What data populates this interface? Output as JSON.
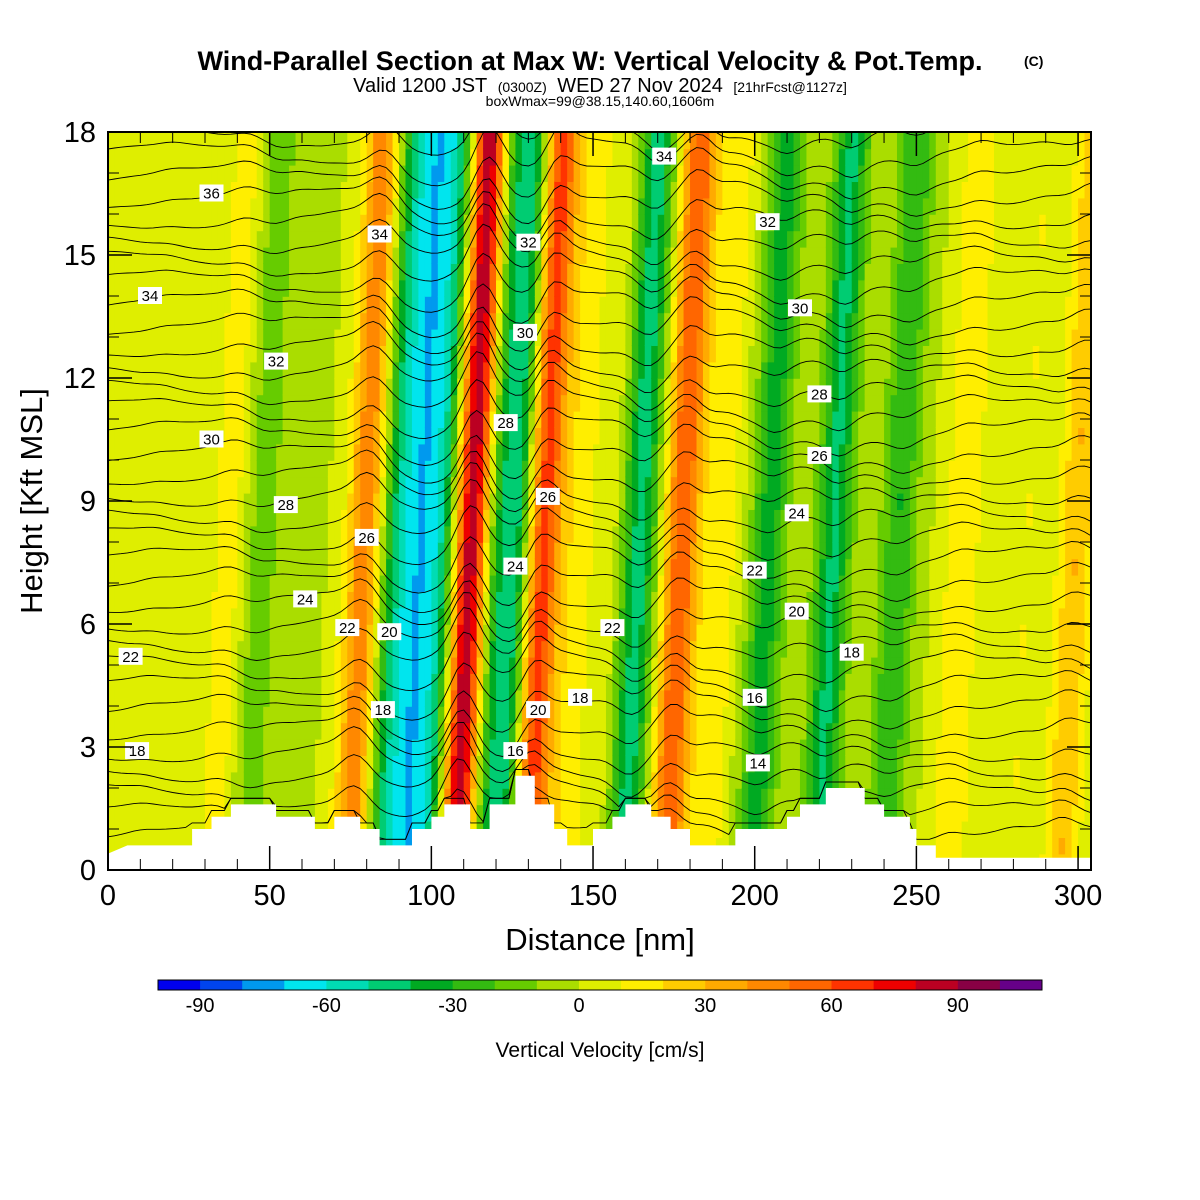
{
  "chart_data": {
    "type": "heatmap",
    "title": "Wind-Parallel Section at Max W: Vertical Velocity & Pot.Temp.",
    "title_mark": "(C)",
    "subtitle_prefix": "Valid 1200 JST",
    "subtitle_utc": "(0300Z)",
    "subtitle_date": "WED 27 Nov 2024",
    "subtitle_fcst": "[21hrFcst@1127z]",
    "subtitle_box": "boxWmax=99@38.15,140.60,1606m",
    "xlabel": "Distance [nm]",
    "ylabel": "Height [Kft MSL]",
    "xlim": [
      0,
      304
    ],
    "ylim": [
      0,
      18
    ],
    "x_ticks": [
      "0",
      "50",
      "100",
      "150",
      "200",
      "250",
      "300"
    ],
    "y_ticks": [
      "0",
      "3",
      "6",
      "9",
      "12",
      "15",
      "18"
    ],
    "colorbar": {
      "label": "Vertical Velocity [cm/s]",
      "range": [
        -100,
        110
      ],
      "step": 10,
      "tick_labels": [
        "-90",
        "-60",
        "-30",
        "0",
        "30",
        "60",
        "90"
      ],
      "colors": [
        "#0000ee",
        "#0044ee",
        "#0099ee",
        "#00e5ee",
        "#00dcb4",
        "#00cc72",
        "#00aa22",
        "#33bb11",
        "#66cc00",
        "#aadd00",
        "#dfee00",
        "#ffee00",
        "#ffcc00",
        "#ffaa00",
        "#ff8800",
        "#ff6600",
        "#ff3300",
        "#ee0000",
        "#bb0022",
        "#880044",
        "#660088"
      ]
    },
    "wind_bands": [
      {
        "x": 0,
        "amp": 2
      },
      {
        "x": 15,
        "amp": 8
      },
      {
        "x": 38,
        "amp": 16
      },
      {
        "x": 48,
        "amp": -16
      },
      {
        "x": 60,
        "amp": -6
      },
      {
        "x": 80,
        "amp": 48
      },
      {
        "x": 90,
        "amp": -38
      },
      {
        "x": 97,
        "amp": -55
      },
      {
        "x": 104,
        "amp": -42
      },
      {
        "x": 113,
        "amp": 95
      },
      {
        "x": 120,
        "amp": -28
      },
      {
        "x": 127,
        "amp": -45
      },
      {
        "x": 135,
        "amp": 68
      },
      {
        "x": 145,
        "amp": 15
      },
      {
        "x": 155,
        "amp": 8
      },
      {
        "x": 165,
        "amp": -45
      },
      {
        "x": 178,
        "amp": 60
      },
      {
        "x": 190,
        "amp": 18
      },
      {
        "x": 205,
        "amp": -35
      },
      {
        "x": 225,
        "amp": -42
      },
      {
        "x": 245,
        "amp": -30
      },
      {
        "x": 265,
        "amp": 20
      },
      {
        "x": 285,
        "amp": 10
      },
      {
        "x": 300,
        "amp": 30
      }
    ],
    "terrain": [
      [
        0,
        0.4
      ],
      [
        6,
        0.6
      ],
      [
        26,
        0.6
      ],
      [
        26,
        1.0
      ],
      [
        32,
        1.0
      ],
      [
        32,
        1.3
      ],
      [
        38,
        1.3
      ],
      [
        38,
        1.6
      ],
      [
        52,
        1.6
      ],
      [
        52,
        1.3
      ],
      [
        64,
        1.3
      ],
      [
        64,
        1.0
      ],
      [
        70,
        1.0
      ],
      [
        70,
        1.3
      ],
      [
        78,
        1.3
      ],
      [
        78,
        1.0
      ],
      [
        84,
        1.0
      ],
      [
        84,
        0.6
      ],
      [
        94,
        0.6
      ],
      [
        94,
        1.0
      ],
      [
        100,
        1.0
      ],
      [
        100,
        1.3
      ],
      [
        104,
        1.3
      ],
      [
        104,
        1.6
      ],
      [
        112,
        1.6
      ],
      [
        112,
        1.0
      ],
      [
        118,
        1.0
      ],
      [
        118,
        1.6
      ],
      [
        126,
        1.6
      ],
      [
        126,
        2.3
      ],
      [
        132,
        2.3
      ],
      [
        132,
        1.6
      ],
      [
        138,
        1.6
      ],
      [
        138,
        1.0
      ],
      [
        142,
        1.0
      ],
      [
        142,
        0.6
      ],
      [
        150,
        0.6
      ],
      [
        150,
        1.0
      ],
      [
        156,
        1.0
      ],
      [
        156,
        1.3
      ],
      [
        160,
        1.3
      ],
      [
        160,
        1.6
      ],
      [
        168,
        1.6
      ],
      [
        168,
        1.3
      ],
      [
        174,
        1.3
      ],
      [
        174,
        1.0
      ],
      [
        180,
        1.0
      ],
      [
        180,
        0.6
      ],
      [
        194,
        0.6
      ],
      [
        194,
        1.0
      ],
      [
        210,
        1.0
      ],
      [
        210,
        1.3
      ],
      [
        214,
        1.3
      ],
      [
        214,
        1.6
      ],
      [
        222,
        1.6
      ],
      [
        222,
        2.0
      ],
      [
        234,
        2.0
      ],
      [
        234,
        1.6
      ],
      [
        240,
        1.6
      ],
      [
        240,
        1.3
      ],
      [
        248,
        1.3
      ],
      [
        248,
        1.0
      ],
      [
        250,
        1.0
      ],
      [
        250,
        0.6
      ],
      [
        256,
        0.6
      ],
      [
        256,
        0.3
      ],
      [
        304,
        0.3
      ],
      [
        304,
        0
      ]
    ],
    "theta_contour_labels": [
      {
        "text": "36",
        "x": 32,
        "y": 16.5
      },
      {
        "text": "34",
        "x": 84,
        "y": 15.5
      },
      {
        "text": "34",
        "x": 13,
        "y": 14.0
      },
      {
        "text": "34",
        "x": 172,
        "y": 17.4
      },
      {
        "text": "32",
        "x": 130,
        "y": 15.3
      },
      {
        "text": "32",
        "x": 204,
        "y": 15.8
      },
      {
        "text": "32",
        "x": 52,
        "y": 12.4
      },
      {
        "text": "30",
        "x": 32,
        "y": 10.5
      },
      {
        "text": "30",
        "x": 129,
        "y": 13.1
      },
      {
        "text": "30",
        "x": 214,
        "y": 13.7
      },
      {
        "text": "28",
        "x": 55,
        "y": 8.9
      },
      {
        "text": "28",
        "x": 123,
        "y": 10.9
      },
      {
        "text": "28",
        "x": 220,
        "y": 11.6
      },
      {
        "text": "26",
        "x": 80,
        "y": 8.1
      },
      {
        "text": "26",
        "x": 136,
        "y": 9.1
      },
      {
        "text": "26",
        "x": 220,
        "y": 10.1
      },
      {
        "text": "24",
        "x": 61,
        "y": 6.6
      },
      {
        "text": "24",
        "x": 126,
        "y": 7.4
      },
      {
        "text": "24",
        "x": 213,
        "y": 8.7
      },
      {
        "text": "22",
        "x": 7,
        "y": 5.2
      },
      {
        "text": "22",
        "x": 74,
        "y": 5.9
      },
      {
        "text": "22",
        "x": 156,
        "y": 5.9
      },
      {
        "text": "22",
        "x": 200,
        "y": 7.3
      },
      {
        "text": "20",
        "x": 87,
        "y": 5.8
      },
      {
        "text": "20",
        "x": 133,
        "y": 3.9
      },
      {
        "text": "20",
        "x": 213,
        "y": 6.3
      },
      {
        "text": "18",
        "x": 9,
        "y": 2.9
      },
      {
        "text": "18",
        "x": 85,
        "y": 3.9
      },
      {
        "text": "18",
        "x": 146,
        "y": 4.2
      },
      {
        "text": "18",
        "x": 230,
        "y": 5.3
      },
      {
        "text": "16",
        "x": 126,
        "y": 2.9
      },
      {
        "text": "16",
        "x": 200,
        "y": 4.2
      },
      {
        "text": "14",
        "x": 201,
        "y": 2.6
      }
    ]
  }
}
